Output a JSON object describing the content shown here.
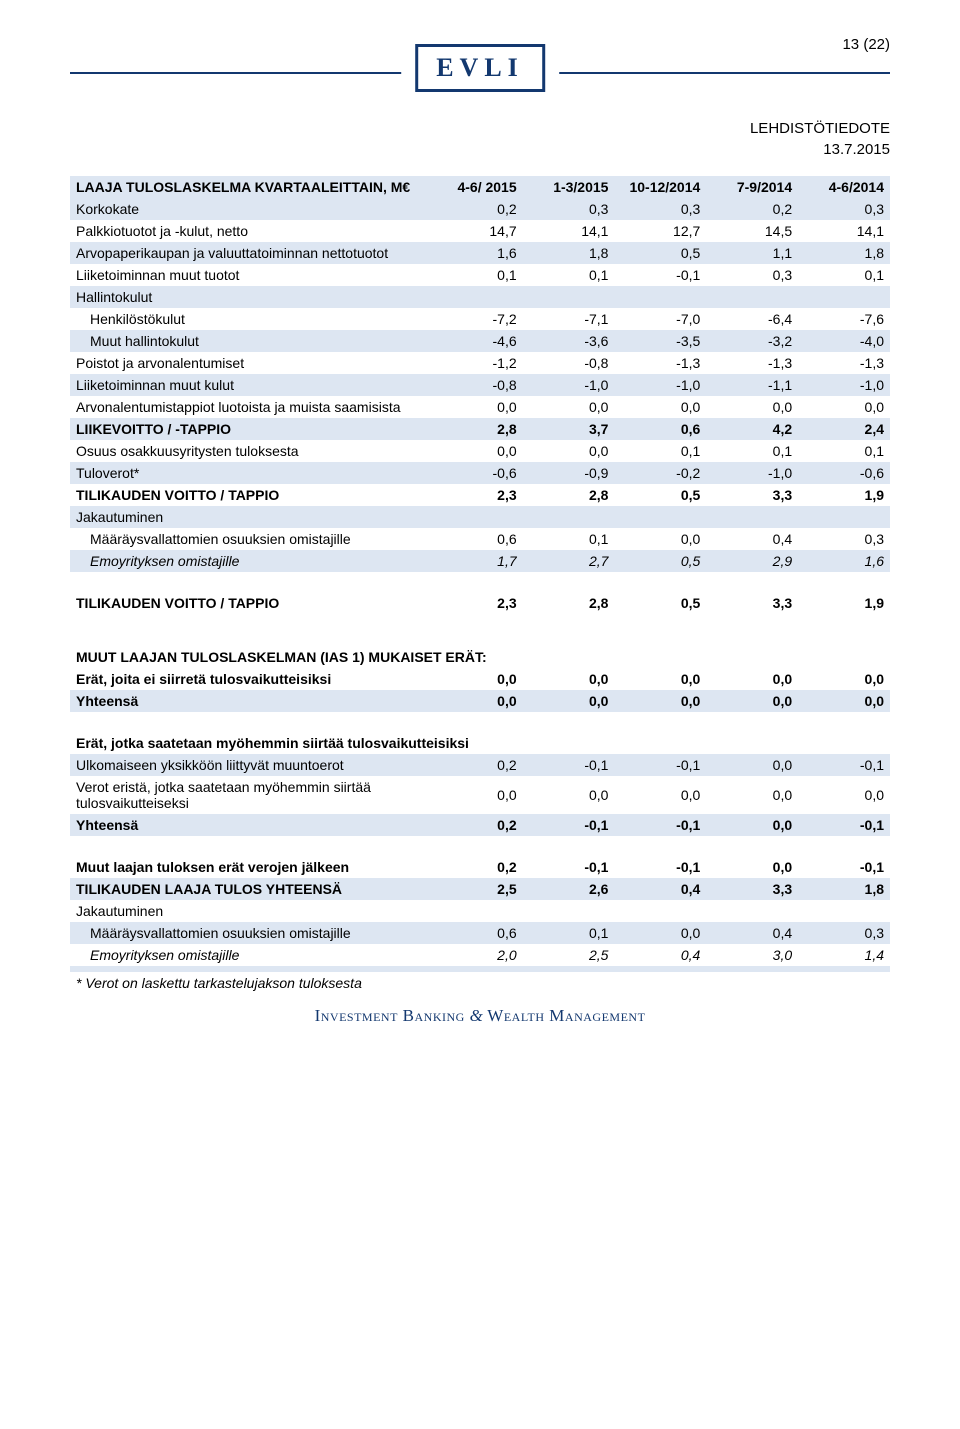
{
  "meta": {
    "page_number": "13 (22)",
    "doc_type": "LEHDISTÖTIEDOTE",
    "date": "13.7.2015",
    "logo_text": "EVLI",
    "footer": "Investment Banking & Wealth Management"
  },
  "colors": {
    "brand": "#13386f",
    "band": "#dde6f2",
    "text": "#000000",
    "bg": "#ffffff"
  },
  "table": {
    "header": {
      "title": "LAAJA TULOSLASKELMA KVARTAALEITTAIN, M€",
      "cols": [
        "4-6/ 2015",
        "1-3/2015",
        "10-12/2014",
        "7-9/2014",
        "4-6/2014"
      ]
    },
    "rows": [
      {
        "type": "data",
        "band": true,
        "label": "Korkokate",
        "vals": [
          "0,2",
          "0,3",
          "0,3",
          "0,2",
          "0,3"
        ]
      },
      {
        "type": "data",
        "label": "Palkkiotuotot ja -kulut, netto",
        "vals": [
          "14,7",
          "14,1",
          "12,7",
          "14,5",
          "14,1"
        ]
      },
      {
        "type": "data",
        "band": true,
        "label": "Arvopaperikaupan ja valuuttatoiminnan nettotuotot",
        "vals": [
          "1,6",
          "1,8",
          "0,5",
          "1,1",
          "1,8"
        ]
      },
      {
        "type": "data",
        "label": "Liiketoiminnan muut tuotot",
        "vals": [
          "0,1",
          "0,1",
          "-0,1",
          "0,3",
          "0,1"
        ]
      },
      {
        "type": "data",
        "band": true,
        "label": "Hallintokulut",
        "vals": [
          "",
          "",
          "",
          "",
          ""
        ]
      },
      {
        "type": "data",
        "indent": 1,
        "label": "Henkilöstökulut",
        "vals": [
          "-7,2",
          "-7,1",
          "-7,0",
          "-6,4",
          "-7,6"
        ]
      },
      {
        "type": "data",
        "band": true,
        "indent": 1,
        "label": "Muut hallintokulut",
        "vals": [
          "-4,6",
          "-3,6",
          "-3,5",
          "-3,2",
          "-4,0"
        ]
      },
      {
        "type": "data",
        "label": "Poistot ja arvonalentumiset",
        "vals": [
          "-1,2",
          "-0,8",
          "-1,3",
          "-1,3",
          "-1,3"
        ]
      },
      {
        "type": "data",
        "band": true,
        "label": "Liiketoiminnan muut kulut",
        "vals": [
          "-0,8",
          "-1,0",
          "-1,0",
          "-1,1",
          "-1,0"
        ]
      },
      {
        "type": "data",
        "label": "Arvonalentumistappiot luotoista ja muista saamisista",
        "vals": [
          "0,0",
          "0,0",
          "0,0",
          "0,0",
          "0,0"
        ]
      },
      {
        "type": "data",
        "band": true,
        "bold": true,
        "label": "LIIKEVOITTO / -TAPPIO",
        "vals": [
          "2,8",
          "3,7",
          "0,6",
          "4,2",
          "2,4"
        ]
      },
      {
        "type": "data",
        "label": "Osuus osakkuusyritysten tuloksesta",
        "vals": [
          "0,0",
          "0,0",
          "0,1",
          "0,1",
          "0,1"
        ]
      },
      {
        "type": "data",
        "band": true,
        "label": "Tuloverot*",
        "vals": [
          "-0,6",
          "-0,9",
          "-0,2",
          "-1,0",
          "-0,6"
        ]
      },
      {
        "type": "data",
        "bold": true,
        "label": "TILIKAUDEN VOITTO / TAPPIO",
        "vals": [
          "2,3",
          "2,8",
          "0,5",
          "3,3",
          "1,9"
        ]
      },
      {
        "type": "data",
        "band": true,
        "label": "Jakautuminen",
        "vals": [
          "",
          "",
          "",
          "",
          ""
        ]
      },
      {
        "type": "data",
        "indent": 1,
        "label": "Määräysvallattomien osuuksien omistajille",
        "vals": [
          "0,6",
          "0,1",
          "0,0",
          "0,4",
          "0,3"
        ]
      },
      {
        "type": "data",
        "band": true,
        "italic": true,
        "indent": 1,
        "label": "Emoyrityksen omistajille",
        "vals": [
          "1,7",
          "2,7",
          "0,5",
          "2,9",
          "1,6"
        ]
      },
      {
        "type": "spacer"
      },
      {
        "type": "data",
        "bold": true,
        "label": "TILIKAUDEN VOITTO / TAPPIO",
        "vals": [
          "2,3",
          "2,8",
          "0,5",
          "3,3",
          "1,9"
        ]
      },
      {
        "type": "bigspacer"
      },
      {
        "type": "section",
        "label": "MUUT LAAJAN TULOSLASKELMAN (IAS 1) MUKAISET ERÄT:"
      },
      {
        "type": "data",
        "bold": true,
        "label": "Erät, joita ei siirretä tulosvaikutteisiksi",
        "vals": [
          "0,0",
          "0,0",
          "0,0",
          "0,0",
          "0,0"
        ]
      },
      {
        "type": "data",
        "bold": true,
        "band": true,
        "label": "Yhteensä",
        "vals": [
          "0,0",
          "0,0",
          "0,0",
          "0,0",
          "0,0"
        ]
      },
      {
        "type": "spacer"
      },
      {
        "type": "section",
        "label": "Erät, jotka saatetaan myöhemmin siirtää tulosvaikutteisiksi"
      },
      {
        "type": "data",
        "band": true,
        "label": "Ulkomaiseen yksikköön liittyvät muuntoerot",
        "vals": [
          "0,2",
          "-0,1",
          "-0,1",
          "0,0",
          "-0,1"
        ]
      },
      {
        "type": "data",
        "label": "Verot eristä, jotka saatetaan myöhemmin siirtää tulosvaikutteiseksi",
        "vals": [
          "0,0",
          "0,0",
          "0,0",
          "0,0",
          "0,0"
        ]
      },
      {
        "type": "data",
        "band": true,
        "bold": true,
        "label": "Yhteensä",
        "vals": [
          "0,2",
          "-0,1",
          "-0,1",
          "0,0",
          "-0,1"
        ]
      },
      {
        "type": "spacer"
      },
      {
        "type": "data",
        "bold": true,
        "label": "Muut laajan tuloksen erät verojen jälkeen",
        "vals": [
          "0,2",
          "-0,1",
          "-0,1",
          "0,0",
          "-0,1"
        ]
      },
      {
        "type": "data",
        "band": true,
        "bold": true,
        "label": "TILIKAUDEN LAAJA TULOS YHTEENSÄ",
        "vals": [
          "2,5",
          "2,6",
          "0,4",
          "3,3",
          "1,8"
        ]
      },
      {
        "type": "data",
        "label": "Jakautuminen",
        "vals": [
          "",
          "",
          "",
          "",
          ""
        ]
      },
      {
        "type": "data",
        "band": true,
        "indent": 1,
        "label": "Määräysvallattomien osuuksien omistajille",
        "vals": [
          "0,6",
          "0,1",
          "0,0",
          "0,4",
          "0,3"
        ]
      },
      {
        "type": "data",
        "italic": true,
        "indent": 1,
        "label": "Emoyrityksen omistajille",
        "vals": [
          "2,0",
          "2,5",
          "0,4",
          "3,0",
          "1,4"
        ]
      },
      {
        "type": "data",
        "band": true,
        "label": "",
        "vals": [
          "",
          "",
          "",
          "",
          ""
        ]
      },
      {
        "type": "footnote",
        "label": "* Verot on laskettu tarkastelujakson tuloksesta"
      }
    ]
  }
}
